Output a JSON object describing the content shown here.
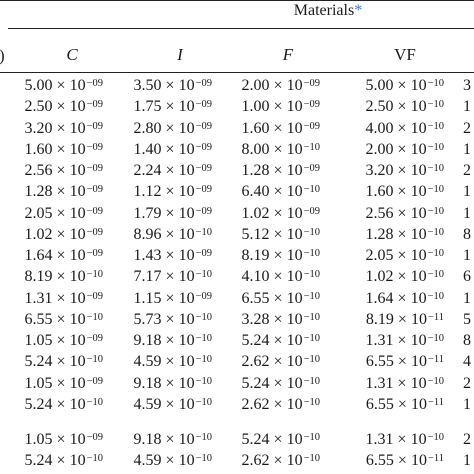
{
  "header": {
    "group_label": "Materials",
    "footnote_mark": "*",
    "left_clip": ")",
    "columns": [
      "C",
      "I",
      "F",
      "VF"
    ]
  },
  "rows": [
    {
      "c": "5.00 × 10",
      "ce": "−09",
      "i": "3.50 × 10",
      "ie": "−09",
      "f": "2.00 × 10",
      "fe": "−09",
      "vf": "5.00 × 10",
      "vfe": "−10",
      "last": "3"
    },
    {
      "c": "2.50 × 10",
      "ce": "−09",
      "i": "1.75 × 10",
      "ie": "−09",
      "f": "1.00 × 10",
      "fe": "−09",
      "vf": "2.50 × 10",
      "vfe": "−10",
      "last": "1"
    },
    {
      "c": "3.20 × 10",
      "ce": "−09",
      "i": "2.80 × 10",
      "ie": "−09",
      "f": "1.60 × 10",
      "fe": "−09",
      "vf": "4.00 × 10",
      "vfe": "−10",
      "last": "2"
    },
    {
      "c": "1.60 × 10",
      "ce": "−09",
      "i": "1.40 × 10",
      "ie": "−09",
      "f": "8.00 × 10",
      "fe": "−10",
      "vf": "2.00 × 10",
      "vfe": "−10",
      "last": "1"
    },
    {
      "c": "2.56 × 10",
      "ce": "−09",
      "i": "2.24 × 10",
      "ie": "−09",
      "f": "1.28 × 10",
      "fe": "−09",
      "vf": "3.20 × 10",
      "vfe": "−10",
      "last": "2"
    },
    {
      "c": "1.28 × 10",
      "ce": "−09",
      "i": "1.12 × 10",
      "ie": "−09",
      "f": "6.40 × 10",
      "fe": "−10",
      "vf": "1.60 × 10",
      "vfe": "−10",
      "last": "1"
    },
    {
      "c": "2.05 × 10",
      "ce": "−09",
      "i": "1.79 × 10",
      "ie": "−09",
      "f": "1.02 × 10",
      "fe": "−09",
      "vf": "2.56 × 10",
      "vfe": "−10",
      "last": "1"
    },
    {
      "c": "1.02 × 10",
      "ce": "−09",
      "i": "8.96 × 10",
      "ie": "−10",
      "f": "5.12 × 10",
      "fe": "−10",
      "vf": "1.28 × 10",
      "vfe": "−10",
      "last": "8"
    },
    {
      "c": "1.64 × 10",
      "ce": "−09",
      "i": "1.43 × 10",
      "ie": "−09",
      "f": "8.19 × 10",
      "fe": "−10",
      "vf": "2.05 × 10",
      "vfe": "−10",
      "last": "1"
    },
    {
      "c": "8.19 × 10",
      "ce": "−10",
      "i": "7.17 × 10",
      "ie": "−10",
      "f": "4.10 × 10",
      "fe": "−10",
      "vf": "1.02 × 10",
      "vfe": "−10",
      "last": "6"
    },
    {
      "c": "1.31 × 10",
      "ce": "−09",
      "i": "1.15 × 10",
      "ie": "−09",
      "f": "6.55 × 10",
      "fe": "−10",
      "vf": "1.64 × 10",
      "vfe": "−10",
      "last": "1"
    },
    {
      "c": "6.55 × 10",
      "ce": "−10",
      "i": "5.73 × 10",
      "ie": "−10",
      "f": "3.28 × 10",
      "fe": "−10",
      "vf": "8.19 × 10",
      "vfe": "−11",
      "last": "5"
    },
    {
      "c": "1.05 × 10",
      "ce": "−09",
      "i": "9.18 × 10",
      "ie": "−10",
      "f": "5.24 × 10",
      "fe": "−10",
      "vf": "1.31 × 10",
      "vfe": "−10",
      "last": "8"
    },
    {
      "c": "5.24 × 10",
      "ce": "−10",
      "i": "4.59 × 10",
      "ie": "−10",
      "f": "2.62 × 10",
      "fe": "−10",
      "vf": "6.55 × 10",
      "vfe": "−11",
      "last": "4"
    },
    {
      "c": "1.05 × 10",
      "ce": "−09",
      "i": "9.18 × 10",
      "ie": "−10",
      "f": "5.24 × 10",
      "fe": "−10",
      "vf": "1.31 × 10",
      "vfe": "−10",
      "last": "2"
    },
    {
      "c": "5.24 × 10",
      "ce": "−10",
      "i": "4.59 × 10",
      "ie": "−10",
      "f": "2.62 × 10",
      "fe": "−10",
      "vf": "6.55 × 10",
      "vfe": "−11",
      "last": "1"
    },
    {
      "c": "1.05 × 10",
      "ce": "−09",
      "i": "9.18 × 10",
      "ie": "−10",
      "f": "5.24 × 10",
      "fe": "−10",
      "vf": "1.31 × 10",
      "vfe": "−10",
      "last": "2"
    },
    {
      "c": "5.24 × 10",
      "ce": "−10",
      "i": "4.59 × 10",
      "ie": "−10",
      "f": "2.62 × 10",
      "fe": "−10",
      "vf": "6.55 × 10",
      "vfe": "−11",
      "last": "1"
    }
  ]
}
